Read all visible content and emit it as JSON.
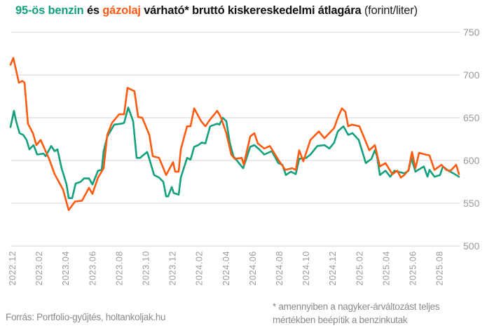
{
  "chart_data": {
    "type": "line",
    "title": {
      "benzin": "95-ös benzin",
      "es": "és",
      "gazolaj": "gázolaj",
      "rest": "várható* bruttó kiskereskedelmi átlagára",
      "unit": "(forint/liter)"
    },
    "x_unit": "months since 2022.12",
    "x_ticks": [
      "2022.12",
      "2023.02",
      "2023.04",
      "2023.06",
      "2023.08",
      "2023.10",
      "2023.12",
      "2024.02",
      "2024.04",
      "2024.06",
      "2024.08",
      "2024.10",
      "2024.12",
      "2025.02",
      "2025.04",
      "2025.06",
      "2025.08"
    ],
    "ylim": [
      500,
      750
    ],
    "y_ticks": [
      500,
      550,
      600,
      650,
      700,
      750
    ],
    "y_axis_position": "right",
    "grid": true,
    "series": [
      {
        "name": "95-ös benzin",
        "color": "#13a07d",
        "points": [
          [
            -0.16,
            639
          ],
          [
            0.1,
            658
          ],
          [
            0.26,
            646
          ],
          [
            0.52,
            632
          ],
          [
            0.79,
            630
          ],
          [
            1.05,
            624
          ],
          [
            1.26,
            613
          ],
          [
            1.57,
            618
          ],
          [
            1.84,
            607
          ],
          [
            2.31,
            608
          ],
          [
            2.47,
            605
          ],
          [
            2.89,
            617
          ],
          [
            3.15,
            611
          ],
          [
            3.36,
            613
          ],
          [
            3.67,
            591
          ],
          [
            4.04,
            572
          ],
          [
            4.2,
            556
          ],
          [
            4.46,
            556
          ],
          [
            4.72,
            573
          ],
          [
            5.09,
            575
          ],
          [
            5.35,
            579
          ],
          [
            5.72,
            579
          ],
          [
            5.98,
            572
          ],
          [
            6.4,
            588
          ],
          [
            6.67,
            589
          ],
          [
            6.82,
            611
          ],
          [
            7.09,
            628
          ],
          [
            7.61,
            642
          ],
          [
            8.14,
            643
          ],
          [
            8.35,
            644
          ],
          [
            8.66,
            662
          ],
          [
            9.03,
            646
          ],
          [
            9.29,
            603
          ],
          [
            9.55,
            603
          ],
          [
            10.08,
            610
          ],
          [
            10.24,
            602
          ],
          [
            10.6,
            583
          ],
          [
            10.97,
            580
          ],
          [
            11.29,
            575
          ],
          [
            11.5,
            558
          ],
          [
            11.65,
            558
          ],
          [
            11.92,
            569
          ],
          [
            12.07,
            562
          ],
          [
            12.44,
            560
          ],
          [
            12.6,
            580
          ],
          [
            13.07,
            603
          ],
          [
            13.33,
            601
          ],
          [
            13.6,
            616
          ],
          [
            13.91,
            618
          ],
          [
            14.17,
            621
          ],
          [
            14.44,
            620
          ],
          [
            14.8,
            640
          ],
          [
            15.33,
            643
          ],
          [
            15.49,
            642
          ],
          [
            15.75,
            650
          ],
          [
            16.01,
            646
          ],
          [
            16.27,
            621
          ],
          [
            16.54,
            605
          ],
          [
            17.27,
            591
          ],
          [
            17.8,
            616
          ],
          [
            18.11,
            618
          ],
          [
            18.48,
            613
          ],
          [
            18.85,
            607
          ],
          [
            19.42,
            611
          ],
          [
            19.9,
            597
          ],
          [
            20.21,
            595
          ],
          [
            20.47,
            583
          ],
          [
            20.84,
            587
          ],
          [
            21.21,
            584
          ],
          [
            21.47,
            602
          ],
          [
            22.0,
            603
          ],
          [
            22.31,
            607
          ],
          [
            22.83,
            617
          ],
          [
            23.36,
            618
          ],
          [
            23.73,
            614
          ],
          [
            24.09,
            621
          ],
          [
            24.36,
            634
          ],
          [
            24.78,
            640
          ],
          [
            25.14,
            630
          ],
          [
            25.46,
            632
          ],
          [
            25.93,
            624
          ],
          [
            26.46,
            597
          ],
          [
            26.88,
            602
          ],
          [
            27.14,
            612
          ],
          [
            27.3,
            605
          ],
          [
            27.51,
            583
          ],
          [
            27.93,
            588
          ],
          [
            28.29,
            581
          ],
          [
            28.61,
            588
          ],
          [
            29.34,
            585
          ],
          [
            29.66,
            588
          ],
          [
            29.87,
            603
          ],
          [
            30.18,
            587
          ],
          [
            30.81,
            593
          ],
          [
            31.08,
            581
          ],
          [
            31.23,
            589
          ],
          [
            31.6,
            581
          ],
          [
            32.02,
            583
          ],
          [
            32.23,
            593
          ],
          [
            32.65,
            588
          ],
          [
            33.02,
            585
          ],
          [
            33.44,
            581
          ]
        ]
      },
      {
        "name": "gázolaj",
        "color": "#ff5a0f",
        "points": [
          [
            -0.16,
            712
          ],
          [
            0.05,
            720
          ],
          [
            0.47,
            691
          ],
          [
            0.73,
            693
          ],
          [
            0.89,
            691
          ],
          [
            1.15,
            643
          ],
          [
            1.52,
            632
          ],
          [
            1.78,
            618
          ],
          [
            2.1,
            624
          ],
          [
            2.47,
            611
          ],
          [
            2.73,
            602
          ],
          [
            3.15,
            584
          ],
          [
            3.78,
            566
          ],
          [
            4.2,
            542
          ],
          [
            4.67,
            552
          ],
          [
            5.2,
            553
          ],
          [
            5.72,
            568
          ],
          [
            5.98,
            561
          ],
          [
            6.4,
            580
          ],
          [
            6.82,
            591
          ],
          [
            7.09,
            630
          ],
          [
            7.45,
            644
          ],
          [
            7.98,
            654
          ],
          [
            8.35,
            654
          ],
          [
            8.61,
            685
          ],
          [
            9.13,
            681
          ],
          [
            9.4,
            651
          ],
          [
            9.71,
            650
          ],
          [
            10.24,
            630
          ],
          [
            10.5,
            605
          ],
          [
            10.97,
            603
          ],
          [
            11.5,
            583
          ],
          [
            12.02,
            598
          ],
          [
            12.18,
            587
          ],
          [
            12.44,
            587
          ],
          [
            12.6,
            613
          ],
          [
            13.07,
            640
          ],
          [
            13.33,
            640
          ],
          [
            13.6,
            661
          ],
          [
            14.12,
            646
          ],
          [
            14.44,
            640
          ],
          [
            14.8,
            648
          ],
          [
            15.33,
            658
          ],
          [
            15.59,
            651
          ],
          [
            16.01,
            632
          ],
          [
            16.38,
            607
          ],
          [
            16.64,
            602
          ],
          [
            17.17,
            603
          ],
          [
            17.32,
            595
          ],
          [
            17.8,
            628
          ],
          [
            18.11,
            632
          ],
          [
            18.37,
            620
          ],
          [
            18.85,
            614
          ],
          [
            19.27,
            617
          ],
          [
            19.9,
            601
          ],
          [
            20.42,
            589
          ],
          [
            20.94,
            591
          ],
          [
            21.21,
            589
          ],
          [
            21.47,
            612
          ],
          [
            21.78,
            599
          ],
          [
            22.31,
            624
          ],
          [
            22.94,
            634
          ],
          [
            23.36,
            626
          ],
          [
            24.09,
            638
          ],
          [
            24.41,
            652
          ],
          [
            24.67,
            661
          ],
          [
            24.93,
            657
          ],
          [
            25.14,
            640
          ],
          [
            25.41,
            642
          ],
          [
            25.98,
            640
          ],
          [
            26.35,
            626
          ],
          [
            26.72,
            612
          ],
          [
            27.14,
            618
          ],
          [
            27.51,
            593
          ],
          [
            27.93,
            597
          ],
          [
            28.45,
            584
          ],
          [
            28.82,
            588
          ],
          [
            29.08,
            580
          ],
          [
            29.34,
            583
          ],
          [
            29.66,
            589
          ],
          [
            29.92,
            610
          ],
          [
            30.18,
            591
          ],
          [
            30.45,
            609
          ],
          [
            30.92,
            607
          ],
          [
            31.23,
            606
          ],
          [
            31.6,
            589
          ],
          [
            32.13,
            595
          ],
          [
            32.49,
            589
          ],
          [
            32.81,
            588
          ],
          [
            33.23,
            595
          ],
          [
            33.44,
            584
          ]
        ]
      }
    ]
  },
  "footer": {
    "source": "Forrás: Portfolio-gyűjtés, holtankoljak.hu",
    "note_line1": "* amennyiben a nagyker-árváltozást teljes",
    "note_line2": "mértékben beépítik a benzinkutak"
  }
}
